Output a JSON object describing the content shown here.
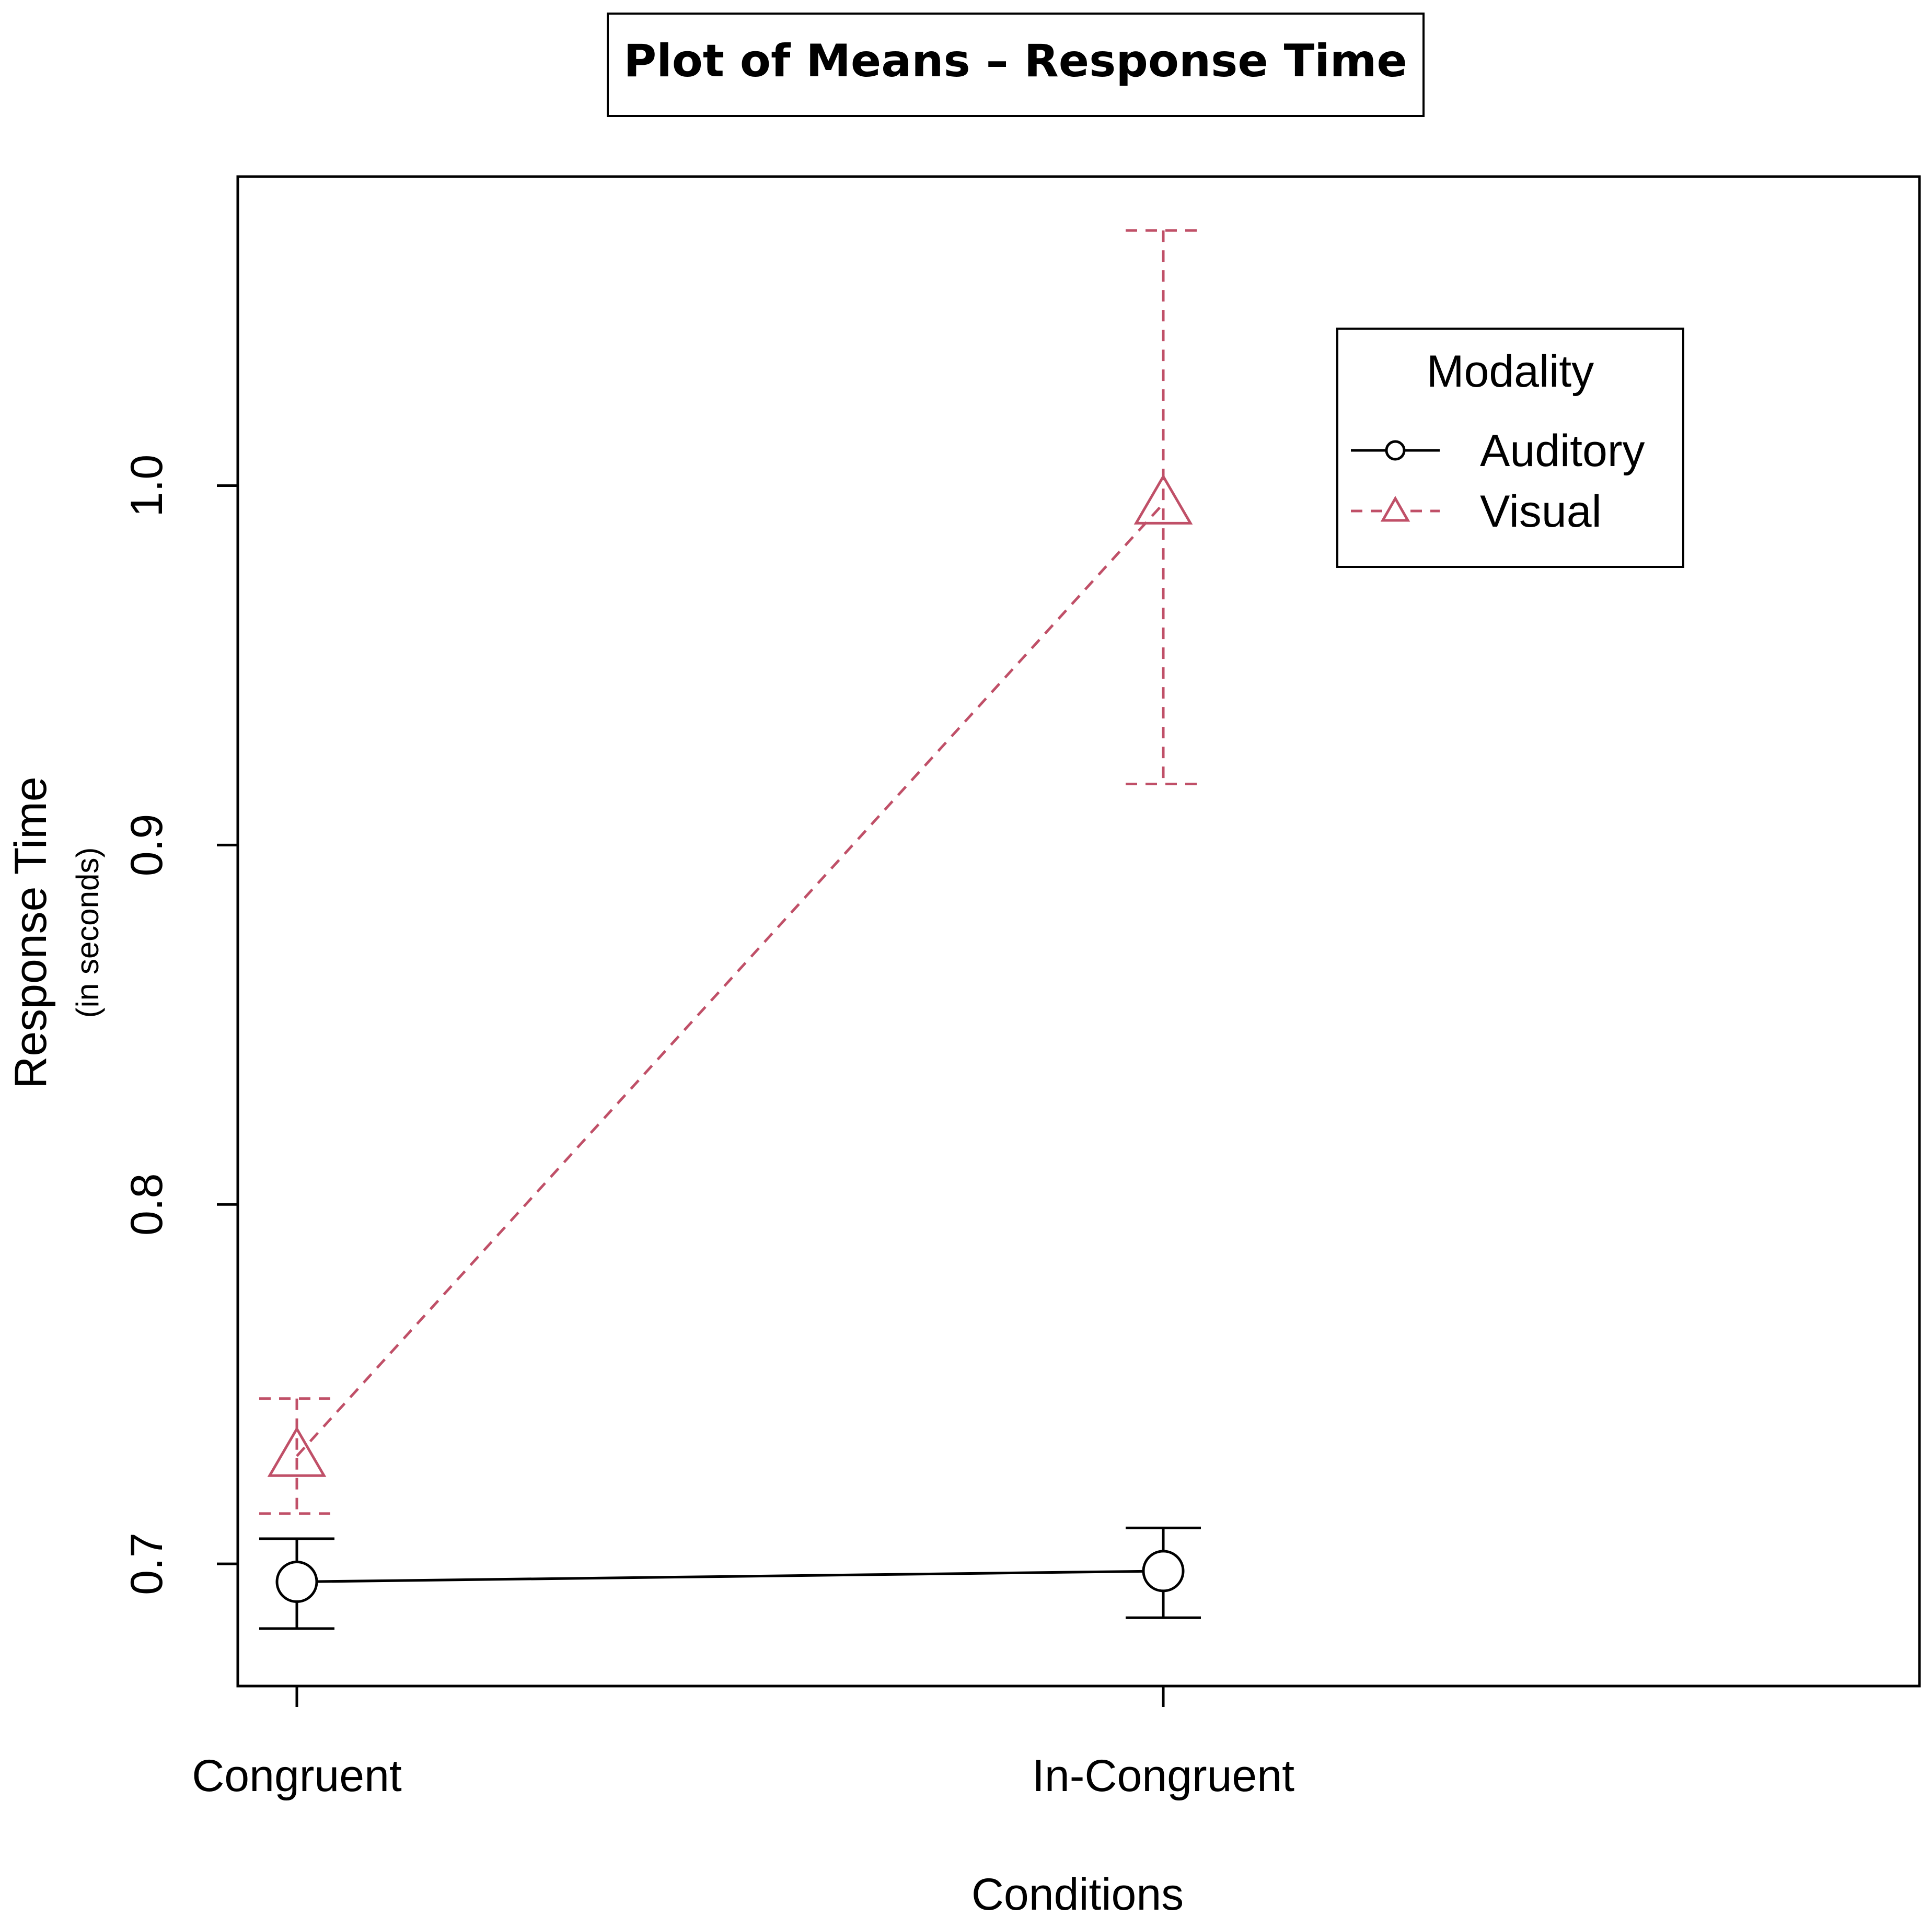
{
  "chart_data": {
    "type": "line",
    "title": "Plot of Means – Response Time",
    "xlabel": "Conditions",
    "ylabel": "Response Time",
    "ylabel_sub": "(in seconds)",
    "categories": [
      "Congruent",
      "In-Congruent"
    ],
    "ylim": [
      0.666,
      1.086
    ],
    "yticks": [
      0.7,
      0.8,
      0.9,
      1.0
    ],
    "ytick_labels": [
      "0.7",
      "0.8",
      "0.9",
      "1.0"
    ],
    "grid": false,
    "legend": {
      "title": "Modality",
      "position": "top-right"
    },
    "series": [
      {
        "name": "Auditory",
        "marker": "circle",
        "line_style": "solid",
        "color": "#000000",
        "values": [
          0.695,
          0.698
        ],
        "error_low": [
          0.682,
          0.685
        ],
        "error_high": [
          0.707,
          0.71
        ]
      },
      {
        "name": "Visual",
        "marker": "triangle",
        "line_style": "dashed",
        "color": "#c05068",
        "values": [
          0.73,
          0.995
        ],
        "error_low": [
          0.714,
          0.917
        ],
        "error_high": [
          0.746,
          1.071
        ]
      }
    ]
  }
}
